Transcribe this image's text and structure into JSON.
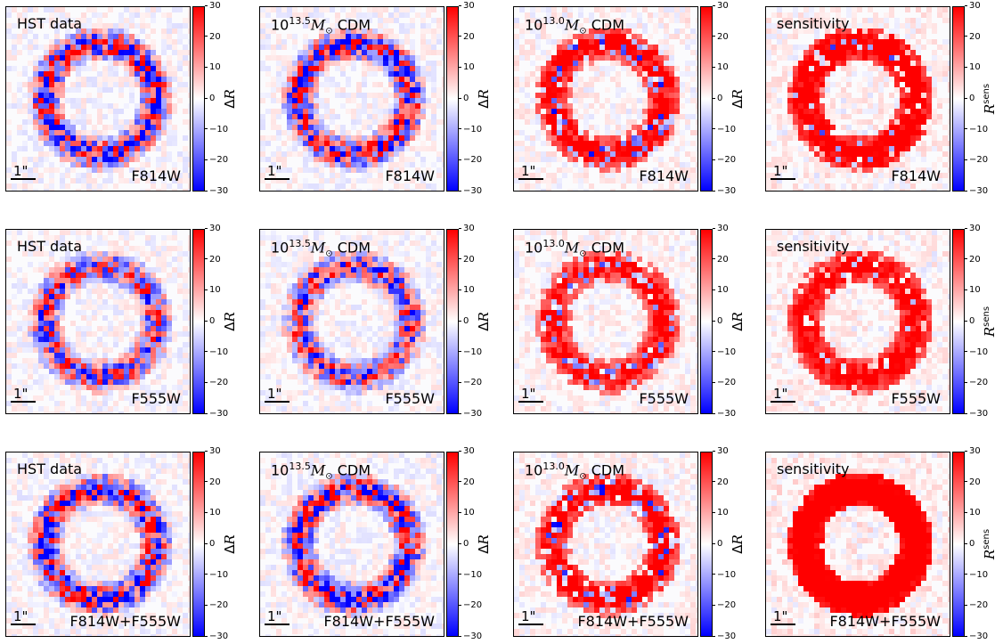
{
  "chart_data": {
    "type": "heatmap",
    "colormap": [
      "#0000ff",
      "#ffffff",
      "#ff0000"
    ],
    "clim": [
      -30,
      30
    ],
    "colorbar_ticks": [
      "30",
      "20",
      "10",
      "0",
      "−10",
      "−20",
      "−30"
    ],
    "scale_bar_label": "1\"",
    "rows": [
      {
        "filter": "F814W",
        "panels": [
          {
            "title_text": "HST data",
            "colorbar_label": "ΔR",
            "mean_residual": 0,
            "residual_amplitude": 30
          },
          {
            "title_text": "10^13.5 M⊙ CDM",
            "colorbar_label": "ΔR",
            "mean_residual": 0,
            "residual_amplitude": 30
          },
          {
            "title_text": "10^13.0 M⊙ CDM",
            "colorbar_label": "ΔR",
            "mean_residual": 10,
            "residual_amplitude": 30
          },
          {
            "title_text": "sensitivity",
            "colorbar_label": "R^sens",
            "mean_residual": 15,
            "residual_amplitude": 30
          }
        ]
      },
      {
        "filter": "F555W",
        "panels": [
          {
            "title_text": "HST data",
            "colorbar_label": "ΔR",
            "mean_residual": 0,
            "residual_amplitude": 25
          },
          {
            "title_text": "10^13.5 M⊙ CDM",
            "colorbar_label": "ΔR",
            "mean_residual": 0,
            "residual_amplitude": 25
          },
          {
            "title_text": "10^13.0 M⊙ CDM",
            "colorbar_label": "ΔR",
            "mean_residual": 10,
            "residual_amplitude": 25
          },
          {
            "title_text": "sensitivity",
            "colorbar_label": "R^sens",
            "mean_residual": 15,
            "residual_amplitude": 20
          }
        ]
      },
      {
        "filter": "F814W+F555W",
        "panels": [
          {
            "title_text": "HST data",
            "colorbar_label": "ΔR",
            "mean_residual": 0,
            "residual_amplitude": 30
          },
          {
            "title_text": "10^13.5 M⊙ CDM",
            "colorbar_label": "ΔR",
            "mean_residual": 0,
            "residual_amplitude": 30
          },
          {
            "title_text": "10^13.0 M⊙ CDM",
            "colorbar_label": "ΔR",
            "mean_residual": 10,
            "residual_amplitude": 30
          },
          {
            "title_text": "sensitivity",
            "colorbar_label": "R^sens",
            "mean_residual": 20,
            "residual_amplitude": 30
          }
        ]
      }
    ]
  }
}
